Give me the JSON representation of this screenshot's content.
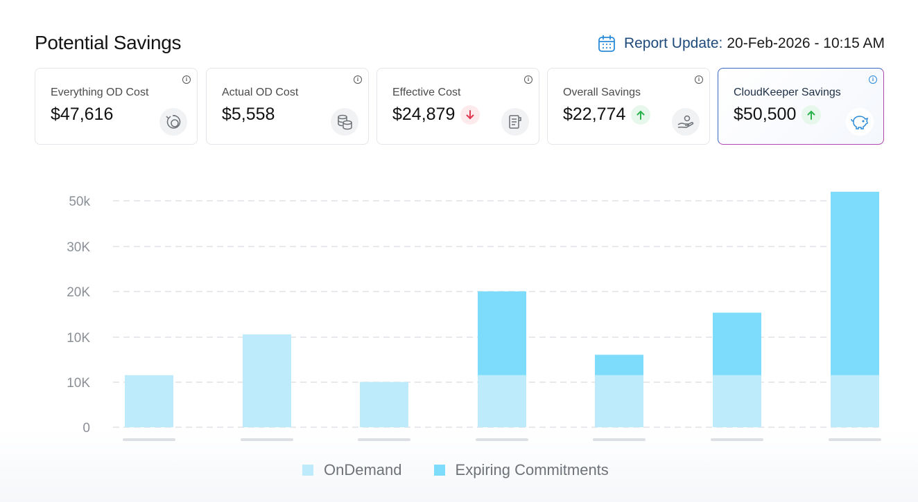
{
  "header": {
    "title": "Potential Savings",
    "report_label": "Report Update:",
    "report_value": "20-Feb-2026 - 10:15 AM",
    "calendar_icon": "calendar-icon"
  },
  "cards": [
    {
      "label": "Everything OD Cost",
      "value": "$47,616",
      "trend": "",
      "icon": "timer-icon"
    },
    {
      "label": "Actual OD Cost",
      "value": "$5,558",
      "trend": "",
      "icon": "coins-icon"
    },
    {
      "label": "Effective Cost",
      "value": "$24,879",
      "trend": "down",
      "icon": "receipt-icon"
    },
    {
      "label": "Overall Savings",
      "value": "$22,774",
      "trend": "up",
      "icon": "hand-coin-icon"
    },
    {
      "label": "CloudKeeper Savings",
      "value": "$50,500",
      "trend": "up",
      "icon": "piggy-bank-icon"
    }
  ],
  "colors": {
    "ondemand": "#bdebfb",
    "expiring": "#7ddbfc",
    "trend_down": "#e0364f",
    "trend_up": "#2bb24c",
    "accent_blue": "#2a8ad8"
  },
  "chart_data": {
    "type": "bar",
    "stacked": true,
    "grid": true,
    "y_tick_labels": [
      "0",
      "10K",
      "10K",
      "20K",
      "30K",
      "50k"
    ],
    "x_tick_labels": [
      "",
      "",
      "",
      "",
      "",
      "",
      ""
    ],
    "categories": [
      "",
      "",
      "",
      "",
      "",
      "",
      ""
    ],
    "series": [
      {
        "name": "OnDemand",
        "values": [
          11500,
          20500,
          10000,
          11500,
          11500,
          11500,
          11500
        ]
      },
      {
        "name": "Expiring Commitments",
        "values": [
          0,
          0,
          0,
          18500,
          4500,
          13800,
          40500
        ]
      }
    ],
    "ylim": [
      0,
      50000
    ],
    "legend_position": "bottom"
  },
  "legend": {
    "ondemand": "OnDemand",
    "expiring": "Expiring Commitments"
  }
}
